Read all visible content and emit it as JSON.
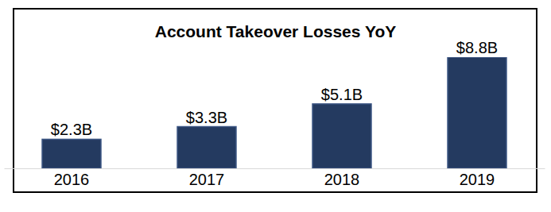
{
  "chart_data": {
    "type": "bar",
    "title": "Account Takeover Losses YoY",
    "categories": [
      "2016",
      "2017",
      "2018",
      "2019"
    ],
    "values": [
      2.3,
      3.3,
      5.1,
      8.8
    ],
    "value_labels": [
      "$2.3B",
      "$3.3B",
      "$5.1B",
      "$8.8B"
    ],
    "color": "#243a60",
    "ylim": [
      0,
      8.8
    ],
    "grid": false,
    "data_labels": true,
    "tick_labels": "x"
  }
}
